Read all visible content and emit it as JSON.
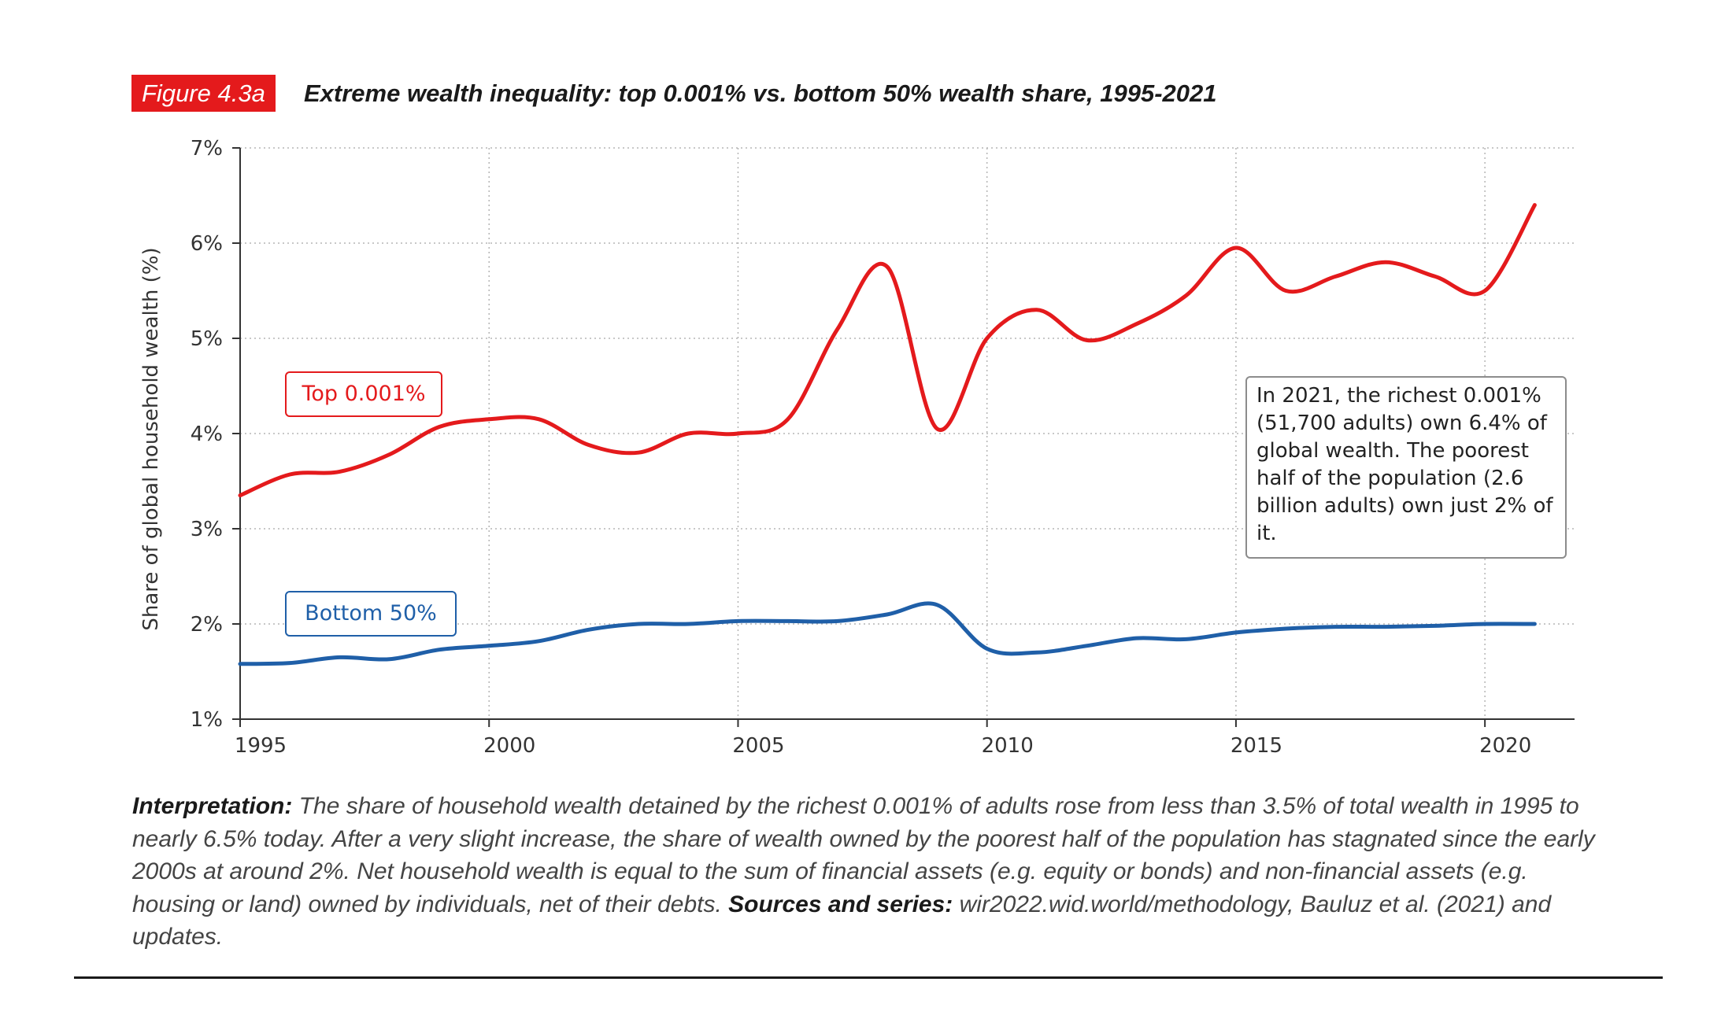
{
  "figure": {
    "label": "Figure 4.3a",
    "title": "Extreme wealth inequality: top 0.001% vs. bottom 50% wealth share, 1995-2021"
  },
  "chart_data": {
    "type": "line",
    "ylabel": "Share of global household wealth (%)",
    "xlabel": "",
    "xlim": [
      1995,
      2021.8
    ],
    "ylim": [
      1,
      7
    ],
    "x_ticks": [
      1995,
      2000,
      2005,
      2010,
      2015,
      2020
    ],
    "x_tick_labels": [
      "1995",
      "2000",
      "2005",
      "2010",
      "2015",
      "2020"
    ],
    "y_ticks": [
      1,
      2,
      3,
      4,
      5,
      6,
      7
    ],
    "y_tick_labels": [
      "1%",
      "2%",
      "3%",
      "4%",
      "5%",
      "6%",
      "7%"
    ],
    "grid": true,
    "x": [
      1995,
      1996,
      1997,
      1998,
      1999,
      2000,
      2001,
      2002,
      2003,
      2004,
      2005,
      2006,
      2007,
      2008,
      2009,
      2010,
      2011,
      2012,
      2013,
      2014,
      2015,
      2016,
      2017,
      2018,
      2019,
      2020,
      2021
    ],
    "series": [
      {
        "name": "Top 0.001%",
        "color": "#e41a1c",
        "values": [
          3.35,
          3.57,
          3.6,
          3.78,
          4.07,
          4.15,
          4.15,
          3.88,
          3.8,
          4.0,
          4.0,
          4.15,
          5.1,
          5.75,
          4.05,
          5.0,
          5.3,
          4.98,
          5.15,
          5.45,
          5.95,
          5.5,
          5.65,
          5.8,
          5.65,
          5.5,
          6.4
        ]
      },
      {
        "name": "Bottom 50%",
        "color": "#1f5fa8",
        "values": [
          1.58,
          1.59,
          1.65,
          1.63,
          1.73,
          1.77,
          1.82,
          1.94,
          2.0,
          2.0,
          2.03,
          2.03,
          2.03,
          2.1,
          2.2,
          1.74,
          1.7,
          1.77,
          1.85,
          1.84,
          1.91,
          1.95,
          1.97,
          1.97,
          1.98,
          2.0,
          2.0
        ]
      }
    ],
    "annotation": "In 2021, the richest 0.001% (51,700 adults) own 6.4% of global wealth. The poorest half of the population (2.6 billion adults) own just 2% of it."
  },
  "caption": {
    "interpretation_label": "Interpretation:",
    "interpretation_text": " The share of household wealth detained by the richest 0.001% of adults rose from less than 3.5% of total wealth in 1995 to nearly 6.5% today. After a very slight increase, the share of wealth owned by the poorest half of the population has stagnated since the early 2000s at around 2%. Net household wealth is equal to the sum of financial assets (e.g. equity or bonds) and non-financial assets (e.g. housing or land) owned by individuals, net of their debts. ",
    "sources_label": "Sources and series:",
    "sources_text": " wir2022.wid.world/methodology, Bauluz et al. (2021) and updates."
  }
}
